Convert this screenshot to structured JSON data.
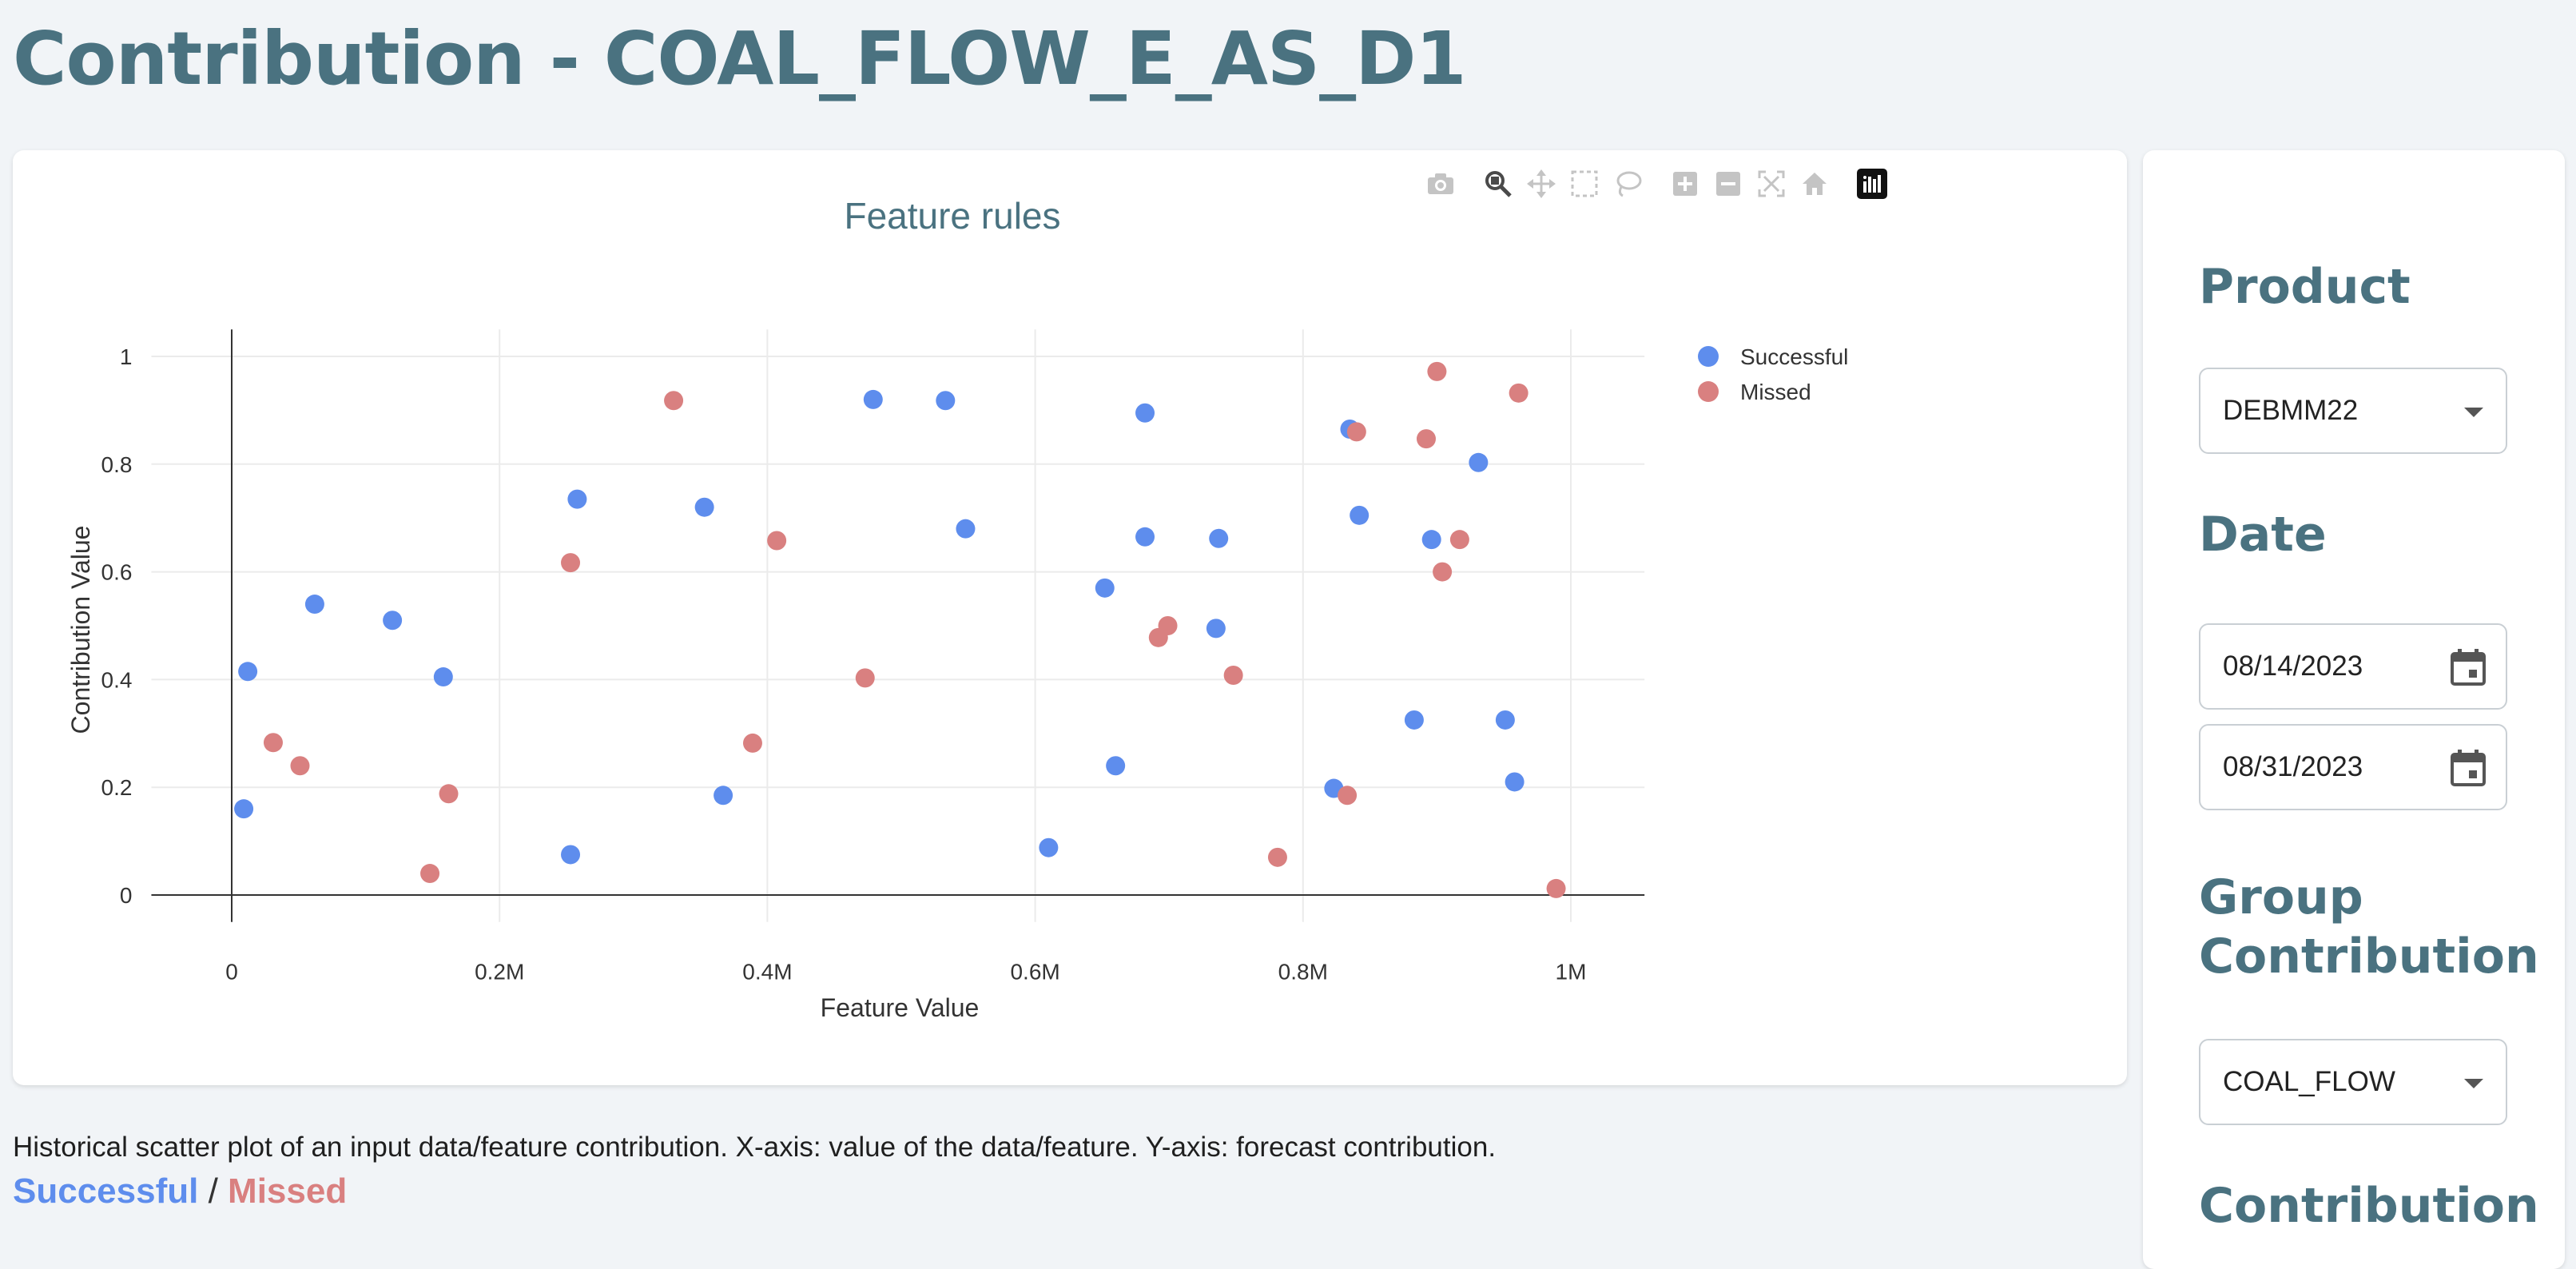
{
  "page": {
    "title": "Contribution - COAL_FLOW_E_AS_D1"
  },
  "modebar": {
    "icons": [
      "camera-icon",
      "zoom-icon",
      "pan-icon",
      "box-select-icon",
      "lasso-icon",
      "zoom-in-icon",
      "zoom-out-icon",
      "autoscale-icon",
      "reset-axes-icon",
      "plotly-logo-icon"
    ]
  },
  "chart_data": {
    "type": "scatter",
    "title": "Feature rules",
    "xlabel": "Feature Value",
    "ylabel": "Contribution Value",
    "xlim": [
      -60000,
      1055000
    ],
    "ylim": [
      -0.05,
      1.05
    ],
    "x_ticks": [
      0,
      200000,
      400000,
      600000,
      800000,
      1000000
    ],
    "x_tick_labels": [
      "0",
      "0.2M",
      "0.4M",
      "0.6M",
      "0.8M",
      "1M"
    ],
    "y_ticks": [
      0,
      0.2,
      0.4,
      0.6,
      0.8,
      1
    ],
    "y_tick_labels": [
      "0",
      "0.2",
      "0.4",
      "0.6",
      "0.8",
      "1"
    ],
    "grid": true,
    "legend_position": "top-right-outside",
    "series": [
      {
        "name": "Successful",
        "color": "#5e8ded",
        "points": [
          [
            9000,
            0.16
          ],
          [
            12000,
            0.415
          ],
          [
            62000,
            0.54
          ],
          [
            120000,
            0.51
          ],
          [
            158000,
            0.405
          ],
          [
            253000,
            0.075
          ],
          [
            258000,
            0.735
          ],
          [
            353000,
            0.72
          ],
          [
            367000,
            0.185
          ],
          [
            479000,
            0.92
          ],
          [
            533000,
            0.918
          ],
          [
            548000,
            0.68
          ],
          [
            610000,
            0.088
          ],
          [
            652000,
            0.57
          ],
          [
            660000,
            0.24
          ],
          [
            682000,
            0.895
          ],
          [
            682000,
            0.665
          ],
          [
            735000,
            0.495
          ],
          [
            737000,
            0.662
          ],
          [
            823000,
            0.198
          ],
          [
            835000,
            0.865
          ],
          [
            842000,
            0.705
          ],
          [
            883000,
            0.325
          ],
          [
            896000,
            0.66
          ],
          [
            931000,
            0.803
          ],
          [
            951000,
            0.325
          ],
          [
            958000,
            0.21
          ]
        ]
      },
      {
        "name": "Missed",
        "color": "#d98080",
        "points": [
          [
            31000,
            0.283
          ],
          [
            51000,
            0.24
          ],
          [
            148000,
            0.04
          ],
          [
            162000,
            0.188
          ],
          [
            253000,
            0.617
          ],
          [
            330000,
            0.918
          ],
          [
            389000,
            0.282
          ],
          [
            407000,
            0.658
          ],
          [
            473000,
            0.403
          ],
          [
            692000,
            0.478
          ],
          [
            699000,
            0.5
          ],
          [
            748000,
            0.408
          ],
          [
            781000,
            0.07
          ],
          [
            833000,
            0.185
          ],
          [
            840000,
            0.86
          ],
          [
            892000,
            0.847
          ],
          [
            900000,
            0.972
          ],
          [
            904000,
            0.6
          ],
          [
            917000,
            0.66
          ],
          [
            961000,
            0.932
          ],
          [
            989000,
            0.012
          ]
        ]
      }
    ]
  },
  "sidebar": {
    "product": {
      "heading": "Product",
      "value": "DEBMM22"
    },
    "date": {
      "heading": "Date",
      "start": "08/14/2023",
      "end": "08/31/2023"
    },
    "group_contribution": {
      "heading_line1": "Group",
      "heading_line2": "Contribution",
      "value": "COAL_FLOW"
    },
    "contribution": {
      "heading": "Contribution"
    }
  },
  "footer": {
    "caption": "Historical scatter plot of an input data/feature contribution. X-axis: value of the data/feature. Y-axis: forecast contribution.",
    "legend_successful": "Successful",
    "legend_separator": "/",
    "legend_missed": "Missed"
  }
}
